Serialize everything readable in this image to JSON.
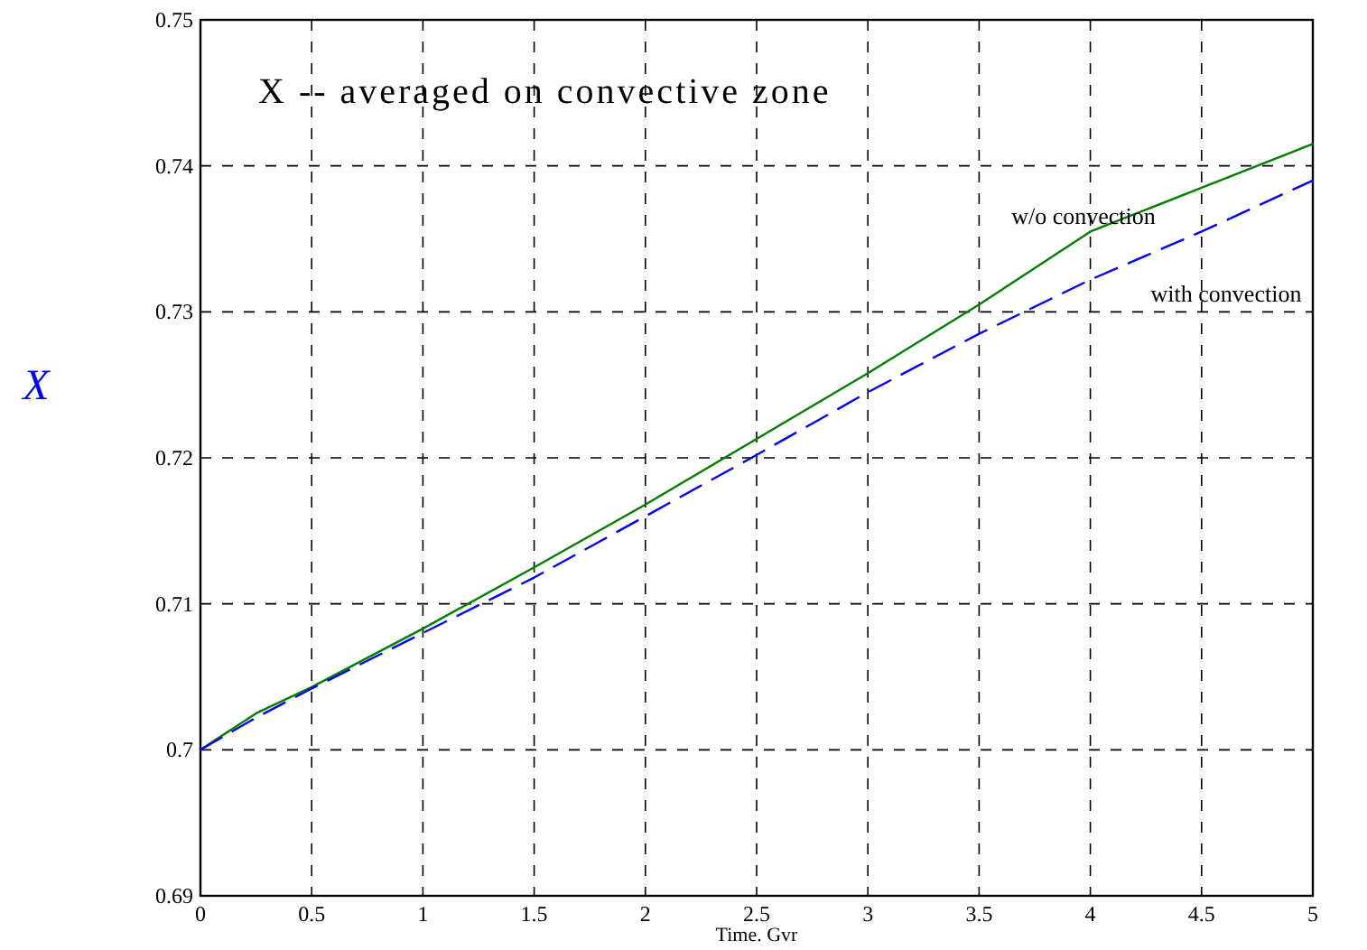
{
  "chart_data": {
    "type": "line",
    "title": "X -- averaged on convective zone",
    "xlabel": "Time. Gvr",
    "ylabel": "X",
    "xlim": [
      0,
      5
    ],
    "xticks": [
      0,
      0.5,
      1,
      1.5,
      2,
      2.5,
      3,
      3.5,
      4,
      4.5,
      5
    ],
    "ylim": [
      0.69,
      0.75
    ],
    "yticks": [
      0.69,
      0.7,
      0.71,
      0.72,
      0.73,
      0.74,
      0.75
    ],
    "grid": true,
    "x": [
      0,
      0.25,
      0.5,
      1,
      1.5,
      2,
      2.5,
      3,
      3.5,
      4,
      4.5,
      5
    ],
    "series": [
      {
        "color": "#008000",
        "line_style": "solid",
        "values": [
          0.7,
          0.7025,
          0.7043,
          0.7083,
          0.7125,
          0.7168,
          0.7213,
          0.7258,
          0.7305,
          0.7355,
          0.7385,
          0.7415
        ]
      },
      {
        "color": "#0000ff",
        "line_style": "dashed",
        "values": [
          0.7,
          0.7022,
          0.7042,
          0.708,
          0.7118,
          0.716,
          0.7202,
          0.7245,
          0.7285,
          0.7322,
          0.7355,
          0.739
        ]
      }
    ],
    "annotations": [
      "w/o convection",
      "with convection"
    ]
  }
}
